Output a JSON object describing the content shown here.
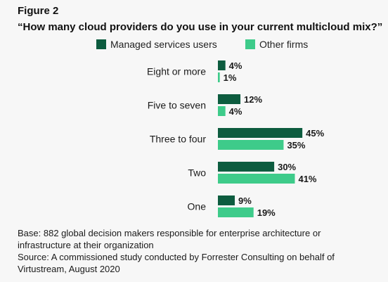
{
  "figure_label": "Figure 2",
  "chart_data": {
    "type": "bar",
    "orientation": "horizontal",
    "title": "“How many cloud providers do you use in your current multicloud mix?”",
    "categories": [
      "Eight or more",
      "Five to seven",
      "Three to four",
      "Two",
      "One"
    ],
    "series": [
      {
        "name": "Managed services users",
        "values": [
          4,
          12,
          45,
          30,
          9
        ],
        "color": "#0d5c3f"
      },
      {
        "name": "Other firms",
        "values": [
          1,
          4,
          35,
          41,
          19
        ],
        "color": "#3ecb8a"
      }
    ],
    "value_suffix": "%",
    "xlim": [
      0,
      50
    ],
    "grid": false,
    "legend_position": "top"
  },
  "notes": {
    "base_line1": "Base: 882 global decision makers responsible for enterprise architecture or",
    "base_line2": "infrastructure at their organization",
    "source_line1": "Source: A commissioned study conducted by Forrester Consulting on behalf of",
    "source_line2": "Virtustream, August 2020"
  }
}
